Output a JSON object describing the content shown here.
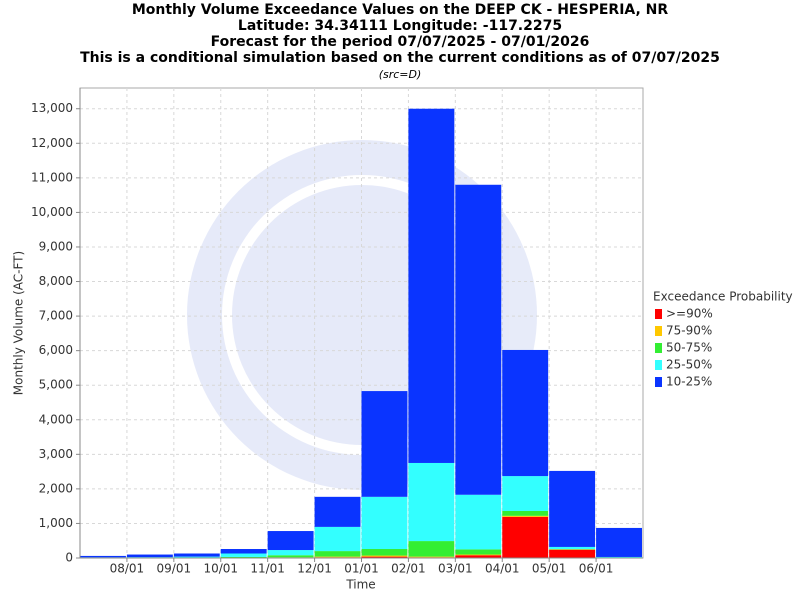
{
  "chart_data": {
    "type": "stacked-bar",
    "title": [
      "Monthly Volume Exceedance Values on the DEEP CK - HESPERIA, NR",
      "Latitude: 34.34111 Longitude: -117.2275",
      "Forecast for the period 07/07/2025 - 07/01/2026",
      "This is a conditional simulation based on the current conditions as of 07/07/2025"
    ],
    "subtitle": "(src=D)",
    "x_label": "Time",
    "y_label": "Monthly Volume (AC-FT)",
    "xticks": [
      "08/01",
      "09/01",
      "10/01",
      "11/01",
      "12/01",
      "01/01",
      "02/01",
      "03/01",
      "04/01",
      "05/01",
      "06/01"
    ],
    "ylim": [
      0,
      13600
    ],
    "yticks": [
      0,
      {
        "value": 1000,
        "label": "1,000"
      },
      {
        "value": 2000,
        "label": "2,000"
      },
      {
        "value": 3000,
        "label": "3,000"
      },
      {
        "value": 4000,
        "label": "4,000"
      },
      {
        "value": 5000,
        "label": "5,000"
      },
      {
        "value": 6000,
        "label": "6,000"
      },
      {
        "value": 7000,
        "label": "7,000"
      },
      {
        "value": 8000,
        "label": "8,000"
      },
      {
        "value": 9000,
        "label": "9,000"
      },
      {
        "value": 10000,
        "label": "10,000"
      },
      {
        "value": 11000,
        "label": "11,000"
      },
      {
        "value": 12000,
        "label": "12,000"
      },
      {
        "value": 13000,
        "label": "13,000"
      }
    ],
    "grid": true,
    "legend_title": "Exceedance Probability",
    "series": [
      {
        "name": ">=90%",
        "color": "#ff0000",
        "values": [
          0,
          0,
          0,
          0,
          10,
          20,
          40,
          20,
          80,
          1190,
          240,
          0
        ]
      },
      {
        "name": "75-90%",
        "color": "#ffc800",
        "values": [
          0,
          0,
          0,
          0,
          10,
          20,
          30,
          20,
          20,
          30,
          10,
          0
        ]
      },
      {
        "name": "50-75%",
        "color": "#33ee33",
        "values": [
          5,
          5,
          10,
          30,
          60,
          160,
          190,
          450,
          150,
          140,
          10,
          10
        ]
      },
      {
        "name": "25-50%",
        "color": "#33ffff",
        "values": [
          15,
          20,
          30,
          100,
          150,
          700,
          1510,
          2260,
          1580,
          1010,
          60,
          20
        ]
      },
      {
        "name": "10-25%",
        "color": "#0a34ff",
        "values": [
          40,
          75,
          90,
          130,
          550,
          870,
          3060,
          10250,
          8970,
          3650,
          2200,
          840
        ]
      }
    ]
  }
}
